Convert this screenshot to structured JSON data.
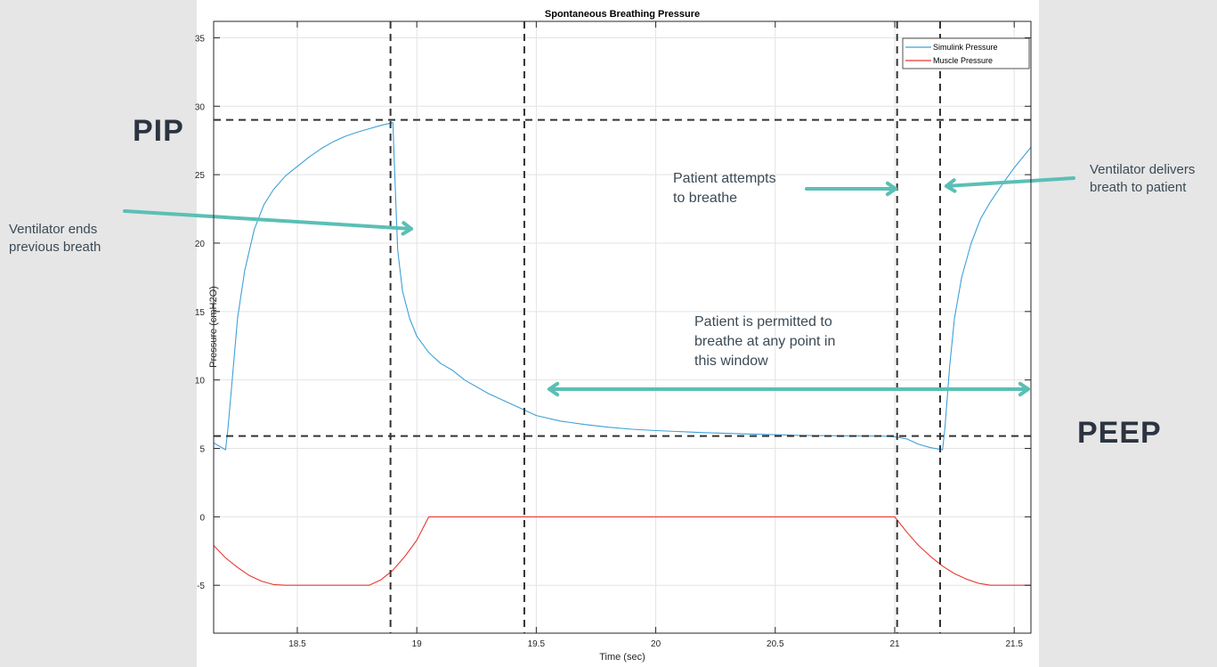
{
  "chart_data": {
    "type": "line",
    "title": "Spontaneous Breathing Pressure",
    "xlabel": "Time (sec)",
    "ylabel": "Pressure (cmH2O)",
    "xlim": [
      18.15,
      21.57
    ],
    "ylim": [
      -8.5,
      36.2
    ],
    "xticks": [
      18.5,
      19,
      19.5,
      20,
      20.5,
      21,
      21.5
    ],
    "xtick_labels": [
      "18.5",
      "19",
      "19.5",
      "20",
      "20.5",
      "21",
      "21.5"
    ],
    "yticks": [
      -5,
      0,
      5,
      10,
      15,
      20,
      25,
      30,
      35
    ],
    "ytick_labels": [
      "-5",
      "0",
      "5",
      "10",
      "15",
      "20",
      "25",
      "30",
      "35"
    ],
    "grid": true,
    "legend_position": "top-right",
    "series": [
      {
        "name": "Simulink Pressure",
        "color": "#3fa0d8",
        "points": [
          [
            18.15,
            5.4
          ],
          [
            18.2,
            4.9
          ],
          [
            18.21,
            6.5
          ],
          [
            18.23,
            10.5
          ],
          [
            18.25,
            14.5
          ],
          [
            18.28,
            18.0
          ],
          [
            18.32,
            21.0
          ],
          [
            18.36,
            22.8
          ],
          [
            18.4,
            23.9
          ],
          [
            18.45,
            24.9
          ],
          [
            18.5,
            25.6
          ],
          [
            18.55,
            26.3
          ],
          [
            18.6,
            26.9
          ],
          [
            18.65,
            27.4
          ],
          [
            18.7,
            27.8
          ],
          [
            18.75,
            28.1
          ],
          [
            18.8,
            28.35
          ],
          [
            18.85,
            28.6
          ],
          [
            18.9,
            28.8
          ],
          [
            18.91,
            24.0
          ],
          [
            18.92,
            19.5
          ],
          [
            18.94,
            16.5
          ],
          [
            18.97,
            14.5
          ],
          [
            19.0,
            13.2
          ],
          [
            19.05,
            12.0
          ],
          [
            19.1,
            11.2
          ],
          [
            19.15,
            10.7
          ],
          [
            19.2,
            10.0
          ],
          [
            19.3,
            9.0
          ],
          [
            19.4,
            8.2
          ],
          [
            19.5,
            7.4
          ],
          [
            19.6,
            7.0
          ],
          [
            19.7,
            6.75
          ],
          [
            19.8,
            6.55
          ],
          [
            19.9,
            6.4
          ],
          [
            20.0,
            6.3
          ],
          [
            20.2,
            6.15
          ],
          [
            20.4,
            6.05
          ],
          [
            20.6,
            5.95
          ],
          [
            20.8,
            5.92
          ],
          [
            20.95,
            5.9
          ],
          [
            21.0,
            5.85
          ],
          [
            21.05,
            5.7
          ],
          [
            21.1,
            5.3
          ],
          [
            21.15,
            5.05
          ],
          [
            21.2,
            4.9
          ],
          [
            21.21,
            6.5
          ],
          [
            21.23,
            11.0
          ],
          [
            21.25,
            14.5
          ],
          [
            21.28,
            17.5
          ],
          [
            21.32,
            20.0
          ],
          [
            21.36,
            21.8
          ],
          [
            21.4,
            23.0
          ],
          [
            21.45,
            24.3
          ],
          [
            21.5,
            25.5
          ],
          [
            21.57,
            27.0
          ]
        ]
      },
      {
        "name": "Muscle Pressure",
        "color": "#e8382f",
        "points": [
          [
            18.15,
            -2.1
          ],
          [
            18.2,
            -3.0
          ],
          [
            18.25,
            -3.7
          ],
          [
            18.3,
            -4.3
          ],
          [
            18.35,
            -4.7
          ],
          [
            18.4,
            -4.95
          ],
          [
            18.45,
            -5.0
          ],
          [
            18.8,
            -5.0
          ],
          [
            18.85,
            -4.6
          ],
          [
            18.9,
            -3.9
          ],
          [
            18.95,
            -2.9
          ],
          [
            19.0,
            -1.7
          ],
          [
            19.05,
            0.0
          ],
          [
            21.0,
            0.0
          ],
          [
            21.05,
            -1.1
          ],
          [
            21.1,
            -2.1
          ],
          [
            21.15,
            -2.9
          ],
          [
            21.2,
            -3.6
          ],
          [
            21.25,
            -4.15
          ],
          [
            21.3,
            -4.55
          ],
          [
            21.35,
            -4.85
          ],
          [
            21.4,
            -5.0
          ],
          [
            21.57,
            -5.0
          ]
        ]
      }
    ],
    "reference_lines": [
      {
        "orientation": "horizontal",
        "value": 29.0
      },
      {
        "orientation": "horizontal",
        "value": 5.9
      },
      {
        "orientation": "vertical",
        "value": 18.89
      },
      {
        "orientation": "vertical",
        "value": 19.45
      },
      {
        "orientation": "vertical",
        "value": 21.01
      },
      {
        "orientation": "vertical",
        "value": 21.19
      }
    ]
  },
  "annotations": {
    "pip": "PIP",
    "peep": "PEEP",
    "ventilator_ends_1": "Ventilator ends",
    "ventilator_ends_2": "previous breath",
    "patient_attempts_1": "Patient attempts",
    "patient_attempts_2": "to breathe",
    "ventilator_delivers_1": "Ventilator delivers",
    "ventilator_delivers_2": "breath to patient",
    "window_1": "Patient is permitted to",
    "window_2": "breathe at any point in",
    "window_3": "this window"
  },
  "colors": {
    "arrow": "#5bbfb5",
    "guide": "#333333",
    "page_background": "#e6e6e6"
  }
}
